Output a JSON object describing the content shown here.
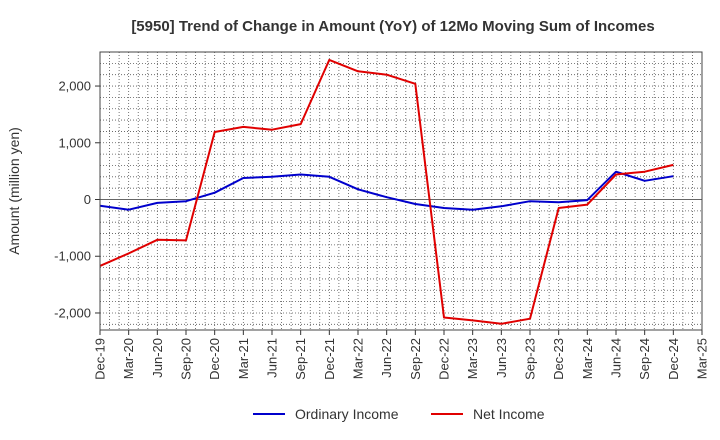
{
  "chart_data": {
    "type": "line",
    "title": "[5950]  Trend of Change in Amount (YoY) of 12Mo Moving Sum of Incomes",
    "xlabel": "",
    "ylabel": "Amount (million yen)",
    "ylim": [
      -2300,
      2600
    ],
    "yticks": [
      -2000,
      -1000,
      0,
      1000,
      2000
    ],
    "ytick_labels": [
      "-2,000",
      "-1,000",
      "0",
      "1,000",
      "2,000"
    ],
    "categories": [
      "Dec-19",
      "Mar-20",
      "Jun-20",
      "Sep-20",
      "Dec-20",
      "Mar-21",
      "Jun-21",
      "Sep-21",
      "Dec-21",
      "Mar-22",
      "Jun-22",
      "Sep-22",
      "Dec-22",
      "Mar-23",
      "Jun-23",
      "Sep-23",
      "Dec-23",
      "Mar-24",
      "Jun-24",
      "Sep-24",
      "Dec-24",
      "Mar-25"
    ],
    "x_minor_per_interval": 3,
    "grid": true,
    "legend_position": "bottom",
    "series": [
      {
        "name": "Ordinary Income",
        "color": "#0000cc",
        "values": [
          -110,
          -180,
          -60,
          -30,
          120,
          380,
          400,
          440,
          400,
          180,
          40,
          -80,
          -150,
          -180,
          -120,
          -30,
          -50,
          -10,
          490,
          330,
          410,
          null
        ]
      },
      {
        "name": "Net Income",
        "color": "#e00000",
        "values": [
          -1170,
          -950,
          -710,
          -720,
          1190,
          1280,
          1230,
          1330,
          2460,
          2260,
          2200,
          2040,
          -2080,
          -2130,
          -2190,
          -2100,
          -150,
          -90,
          440,
          490,
          610,
          null
        ]
      }
    ]
  }
}
